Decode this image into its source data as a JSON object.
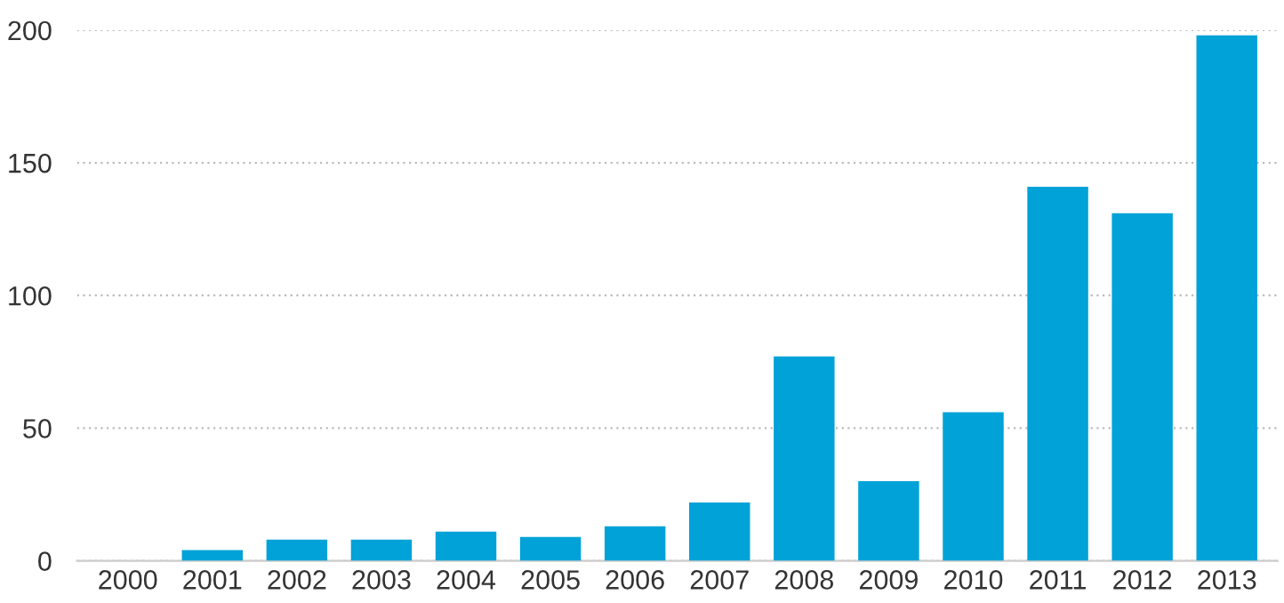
{
  "chart_data": {
    "type": "bar",
    "categories": [
      "2000",
      "2001",
      "2002",
      "2003",
      "2004",
      "2005",
      "2006",
      "2007",
      "2008",
      "2009",
      "2010",
      "2011",
      "2012",
      "2013"
    ],
    "values": [
      0,
      4,
      8,
      8,
      11,
      9,
      13,
      22,
      77,
      30,
      56,
      141,
      131,
      198
    ],
    "color": "#00a2d8",
    "ylim": [
      0,
      200
    ],
    "yticks": [
      0,
      50,
      100,
      150,
      200
    ],
    "grid": "y"
  }
}
